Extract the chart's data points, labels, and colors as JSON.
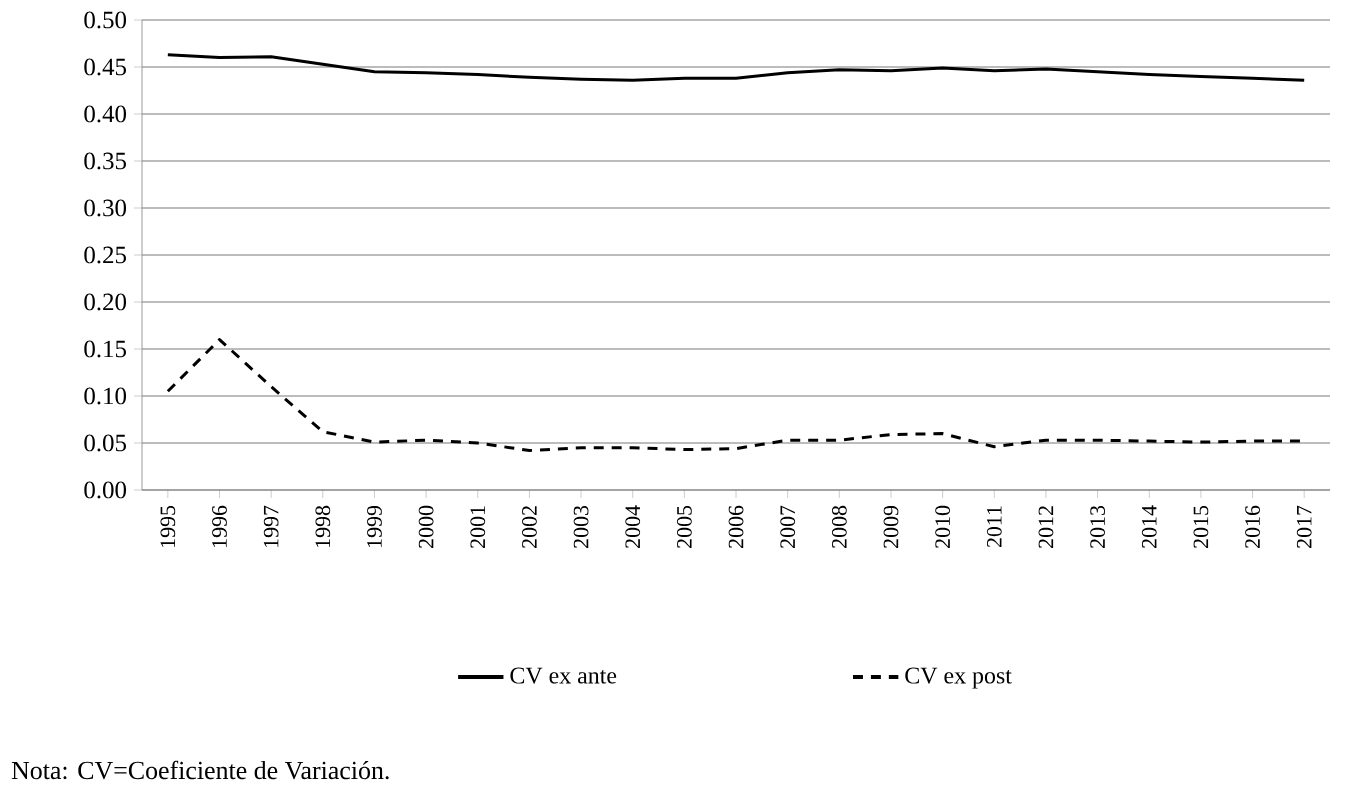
{
  "chart_data": {
    "type": "line",
    "categories": [
      "1995",
      "1996",
      "1997",
      "1998",
      "1999",
      "2000",
      "2001",
      "2002",
      "2003",
      "2004",
      "2005",
      "2006",
      "2007",
      "2008",
      "2009",
      "2010",
      "2011",
      "2012",
      "2013",
      "2014",
      "2015",
      "2016",
      "2017"
    ],
    "series": [
      {
        "name": "CV ex ante",
        "color": "#000000",
        "line_style": "solid",
        "values": [
          0.463,
          0.46,
          0.461,
          0.453,
          0.445,
          0.444,
          0.442,
          0.439,
          0.437,
          0.436,
          0.438,
          0.438,
          0.444,
          0.447,
          0.446,
          0.449,
          0.446,
          0.448,
          0.445,
          0.442,
          0.44,
          0.438,
          0.436
        ]
      },
      {
        "name": "CV ex post",
        "color": "#000000",
        "line_style": "dashed",
        "values": [
          0.105,
          0.16,
          0.11,
          0.062,
          0.051,
          0.053,
          0.05,
          0.042,
          0.045,
          0.045,
          0.043,
          0.044,
          0.053,
          0.053,
          0.059,
          0.06,
          0.046,
          0.053,
          0.053,
          0.052,
          0.051,
          0.052,
          0.052
        ]
      }
    ],
    "ylim": [
      0,
      0.5
    ],
    "yticks": [
      {
        "value": 0,
        "label": "0.00"
      },
      {
        "value": 0.05,
        "label": "0.05"
      },
      {
        "value": 0.1,
        "label": "0.10"
      },
      {
        "value": 0.15,
        "label": "0.15"
      },
      {
        "value": 0.2,
        "label": "0.20"
      },
      {
        "value": 0.25,
        "label": "0.25"
      },
      {
        "value": 0.3,
        "label": "0.30"
      },
      {
        "value": 0.35,
        "label": "0.35"
      },
      {
        "value": 0.4,
        "label": "0.40"
      },
      {
        "value": 0.45,
        "label": "0.45"
      },
      {
        "value": 0.5,
        "label": "0.50"
      }
    ],
    "grid": "y",
    "legend": "bottom",
    "marker": "none",
    "annotations": [
      "Nota: CV=Coeficiente de Variación."
    ]
  }
}
